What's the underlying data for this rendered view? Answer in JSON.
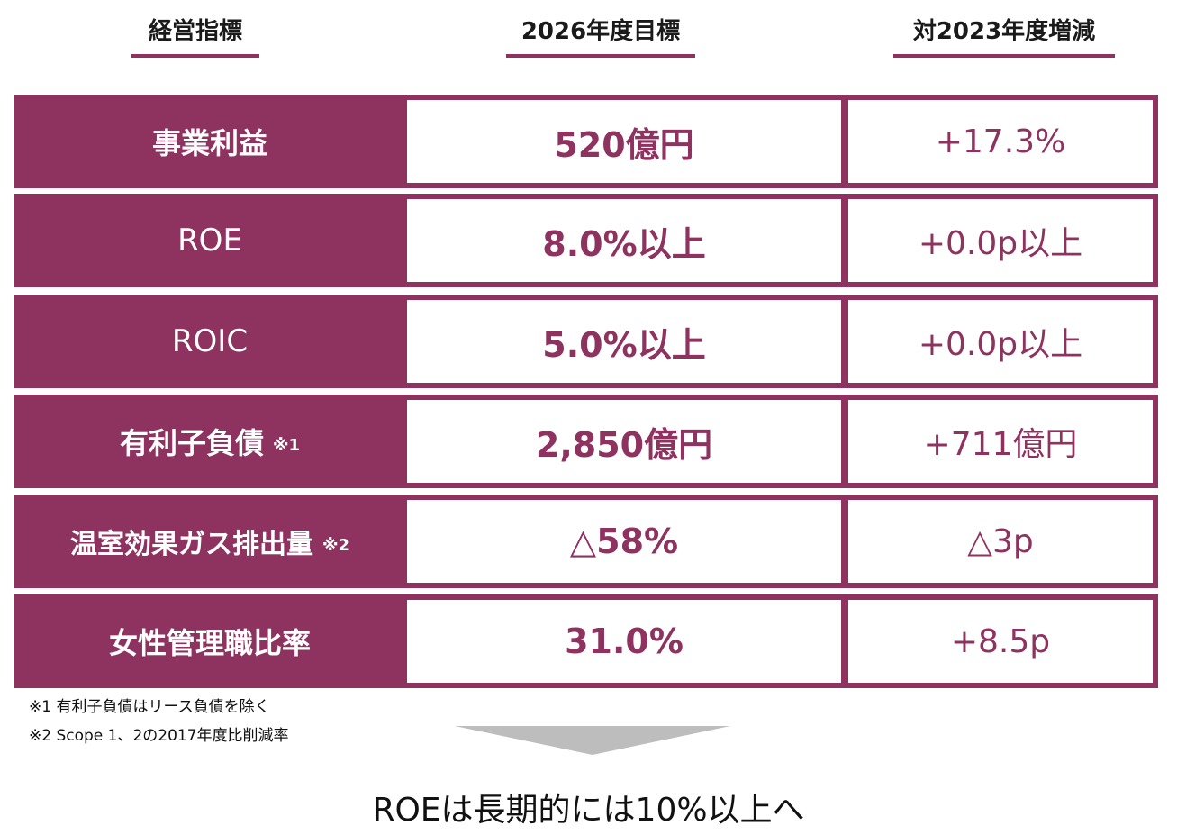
{
  "headers": {
    "metric": "経営指標",
    "target": "2026年度目標",
    "change": "対2023年度増減"
  },
  "rows": [
    {
      "metric": "事業利益",
      "note": "",
      "target": "520億円",
      "change": "+17.3%"
    },
    {
      "metric": "ROE",
      "note": "",
      "target": "8.0%以上",
      "change": "+0.0p以上"
    },
    {
      "metric": "ROIC",
      "note": "",
      "target": "5.0%以上",
      "change": "+0.0p以上"
    },
    {
      "metric": "有利子負債",
      "note": "※1",
      "target": "2,850億円",
      "change": "+711億円"
    },
    {
      "metric": "温室効果ガス排出量",
      "note": "※2",
      "target": "△58%",
      "change": "△3p"
    },
    {
      "metric": "女性管理職比率",
      "note": "",
      "target": "31.0%",
      "change": "+8.5p"
    }
  ],
  "footnotes": [
    "※1 有利子負債はリース負債を除く",
    "※2 Scope 1、2の2017年度比削減率"
  ],
  "conclusion": "ROEは長期的には10%以上へ",
  "colors": {
    "accent": "#8e3360",
    "arrow": "#bdbdbd"
  }
}
